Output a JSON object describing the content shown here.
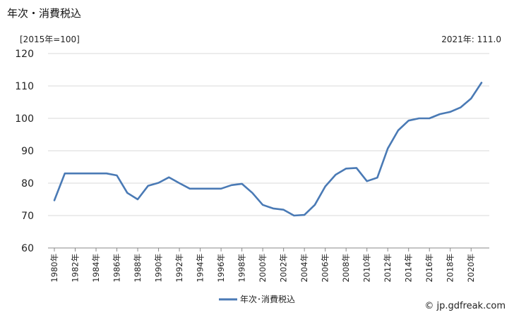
{
  "header": {
    "title": "年次・消費税込",
    "unit": "[2015年=100]",
    "latest": "2021年: 111.0"
  },
  "footer": {
    "credit": "© jp.gdfreak.com"
  },
  "chart_data": {
    "type": "line",
    "title": "年次・消費税込",
    "xlabel": "",
    "ylabel": "[2015年=100]",
    "ylim": [
      60,
      120
    ],
    "yticks": [
      "60",
      "70",
      "80",
      "90",
      "100",
      "110",
      "120"
    ],
    "grid": true,
    "legend": "bottom-center",
    "x": [
      1980,
      1981,
      1982,
      1983,
      1984,
      1985,
      1986,
      1987,
      1988,
      1989,
      1990,
      1991,
      1992,
      1993,
      1994,
      1995,
      1996,
      1997,
      1998,
      1999,
      2000,
      2001,
      2002,
      2003,
      2004,
      2005,
      2006,
      2007,
      2008,
      2009,
      2010,
      2011,
      2012,
      2013,
      2014,
      2015,
      2016,
      2017,
      2018,
      2019,
      2020,
      2021
    ],
    "xtick_labels": [
      "1980年",
      "1982年",
      "1984年",
      "1986年",
      "1988年",
      "1990年",
      "1992年",
      "1994年",
      "1996年",
      "1998年",
      "2000年",
      "2002年",
      "2004年",
      "2006年",
      "2008年",
      "2010年",
      "2012年",
      "2014年",
      "2016年",
      "2018年",
      "2020年"
    ],
    "series": [
      {
        "name": "年次･消費税込",
        "color": "#4a7ab5",
        "values": [
          74.7,
          83.0,
          83.0,
          83.0,
          83.0,
          83.0,
          82.4,
          77.0,
          75.0,
          79.2,
          80.1,
          81.8,
          80.0,
          78.3,
          78.3,
          78.3,
          78.3,
          79.4,
          79.8,
          77.0,
          73.3,
          72.2,
          71.8,
          70.0,
          70.2,
          73.3,
          79.0,
          82.6,
          84.5,
          84.7,
          80.6,
          81.7,
          90.7,
          96.3,
          99.3,
          100.0,
          100.0,
          101.3,
          102.0,
          103.4,
          106.1,
          111.0
        ]
      }
    ]
  }
}
